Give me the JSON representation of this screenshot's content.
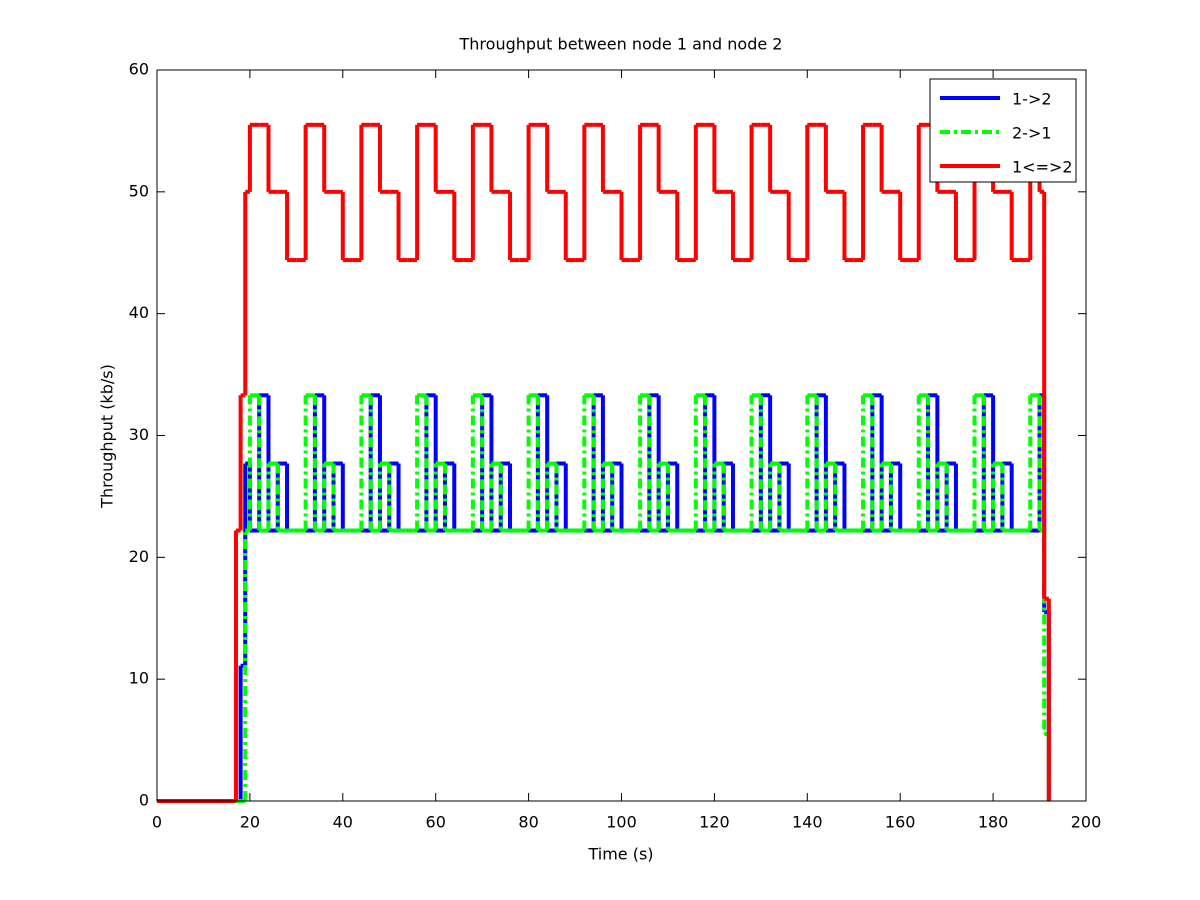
{
  "chart_data": {
    "type": "line",
    "step": true,
    "title": "Throughput between node 1 and node 2",
    "x_label": "Time (s)",
    "y_label": "Throughput (kb/s)",
    "xlim": [
      0,
      200
    ],
    "ylim": [
      0,
      60
    ],
    "xticks": [
      0,
      20,
      40,
      60,
      80,
      100,
      120,
      140,
      160,
      180,
      200
    ],
    "yticks": [
      0,
      10,
      20,
      30,
      40,
      50,
      60
    ],
    "legend": "upper right",
    "x": [
      0,
      17,
      18,
      19,
      20,
      22,
      24,
      26,
      28,
      30,
      32,
      34,
      36,
      38,
      40,
      42,
      44,
      46,
      48,
      50,
      52,
      54,
      56,
      58,
      60,
      62,
      64,
      66,
      68,
      70,
      72,
      74,
      76,
      78,
      80,
      82,
      84,
      86,
      88,
      90,
      92,
      94,
      96,
      98,
      100,
      102,
      104,
      106,
      108,
      110,
      112,
      114,
      116,
      118,
      120,
      122,
      124,
      126,
      128,
      130,
      132,
      134,
      136,
      138,
      140,
      142,
      144,
      146,
      148,
      150,
      152,
      154,
      156,
      158,
      160,
      162,
      164,
      166,
      168,
      170,
      172,
      174,
      176,
      178,
      180,
      182,
      184,
      186,
      188,
      190,
      191,
      192
    ],
    "series": [
      {
        "name": "1->2",
        "color": "#0000ff",
        "dash": "solid",
        "values": [
          0,
          0,
          11.1,
          27.7,
          22.2,
          33.3,
          22.2,
          27.7,
          22.2,
          22.2,
          22.2,
          33.3,
          22.2,
          27.7,
          22.2,
          22.2,
          22.2,
          33.3,
          22.2,
          27.7,
          22.2,
          22.2,
          22.2,
          33.3,
          22.2,
          27.7,
          22.2,
          22.2,
          22.2,
          33.3,
          22.2,
          27.7,
          22.2,
          22.2,
          22.2,
          33.3,
          22.2,
          27.7,
          22.2,
          22.2,
          22.2,
          33.3,
          22.2,
          27.7,
          22.2,
          22.2,
          22.2,
          33.3,
          22.2,
          27.7,
          22.2,
          22.2,
          22.2,
          33.3,
          22.2,
          27.7,
          22.2,
          22.2,
          22.2,
          33.3,
          22.2,
          27.7,
          22.2,
          22.2,
          22.2,
          33.3,
          22.2,
          27.7,
          22.2,
          22.2,
          22.2,
          33.3,
          22.2,
          27.7,
          22.2,
          22.2,
          22.2,
          33.3,
          22.2,
          27.7,
          22.2,
          22.2,
          22.2,
          33.3,
          22.2,
          27.7,
          22.2,
          22.2,
          22.2,
          33.3,
          15.5,
          0
        ]
      },
      {
        "name": "2->1",
        "color": "#00ff00",
        "dash": "dashdot",
        "values": [
          0,
          0,
          0,
          22.2,
          33.3,
          22.2,
          27.7,
          22.2,
          22.2,
          22.2,
          33.3,
          22.2,
          27.7,
          22.2,
          22.2,
          22.2,
          33.3,
          22.2,
          27.7,
          22.2,
          22.2,
          22.2,
          33.3,
          22.2,
          27.7,
          22.2,
          22.2,
          22.2,
          33.3,
          22.2,
          27.7,
          22.2,
          22.2,
          22.2,
          33.3,
          22.2,
          27.7,
          22.2,
          22.2,
          22.2,
          33.3,
          22.2,
          27.7,
          22.2,
          22.2,
          22.2,
          33.3,
          22.2,
          27.7,
          22.2,
          22.2,
          22.2,
          33.3,
          22.2,
          27.7,
          22.2,
          22.2,
          22.2,
          33.3,
          22.2,
          27.7,
          22.2,
          22.2,
          22.2,
          33.3,
          22.2,
          27.7,
          22.2,
          22.2,
          22.2,
          33.3,
          22.2,
          27.7,
          22.2,
          22.2,
          22.2,
          33.3,
          22.2,
          27.7,
          22.2,
          22.2,
          22.2,
          33.3,
          22.2,
          27.7,
          22.2,
          22.2,
          22.2,
          33.3,
          22.2,
          5.5,
          0
        ]
      },
      {
        "name": "1<=>2",
        "color": "#ff0000",
        "dash": "solid",
        "values": [
          0,
          22.2,
          33.3,
          50,
          55.5,
          55.5,
          50,
          50,
          44.4,
          44.4,
          55.5,
          55.5,
          50,
          50,
          44.4,
          44.4,
          55.5,
          55.5,
          50,
          50,
          44.4,
          44.4,
          55.5,
          55.5,
          50,
          50,
          44.4,
          44.4,
          55.5,
          55.5,
          50,
          50,
          44.4,
          44.4,
          55.5,
          55.5,
          50,
          50,
          44.4,
          44.4,
          55.5,
          55.5,
          50,
          50,
          44.4,
          44.4,
          55.5,
          55.5,
          50,
          50,
          44.4,
          44.4,
          55.5,
          55.5,
          50,
          50,
          44.4,
          44.4,
          55.5,
          55.5,
          50,
          50,
          44.4,
          44.4,
          55.5,
          55.5,
          50,
          50,
          44.4,
          44.4,
          55.5,
          55.5,
          50,
          50,
          44.4,
          44.4,
          55.5,
          55.5,
          50,
          50,
          44.4,
          44.4,
          55.5,
          55.5,
          50,
          50,
          44.4,
          44.4,
          55.5,
          50,
          16.6,
          0
        ]
      }
    ]
  }
}
